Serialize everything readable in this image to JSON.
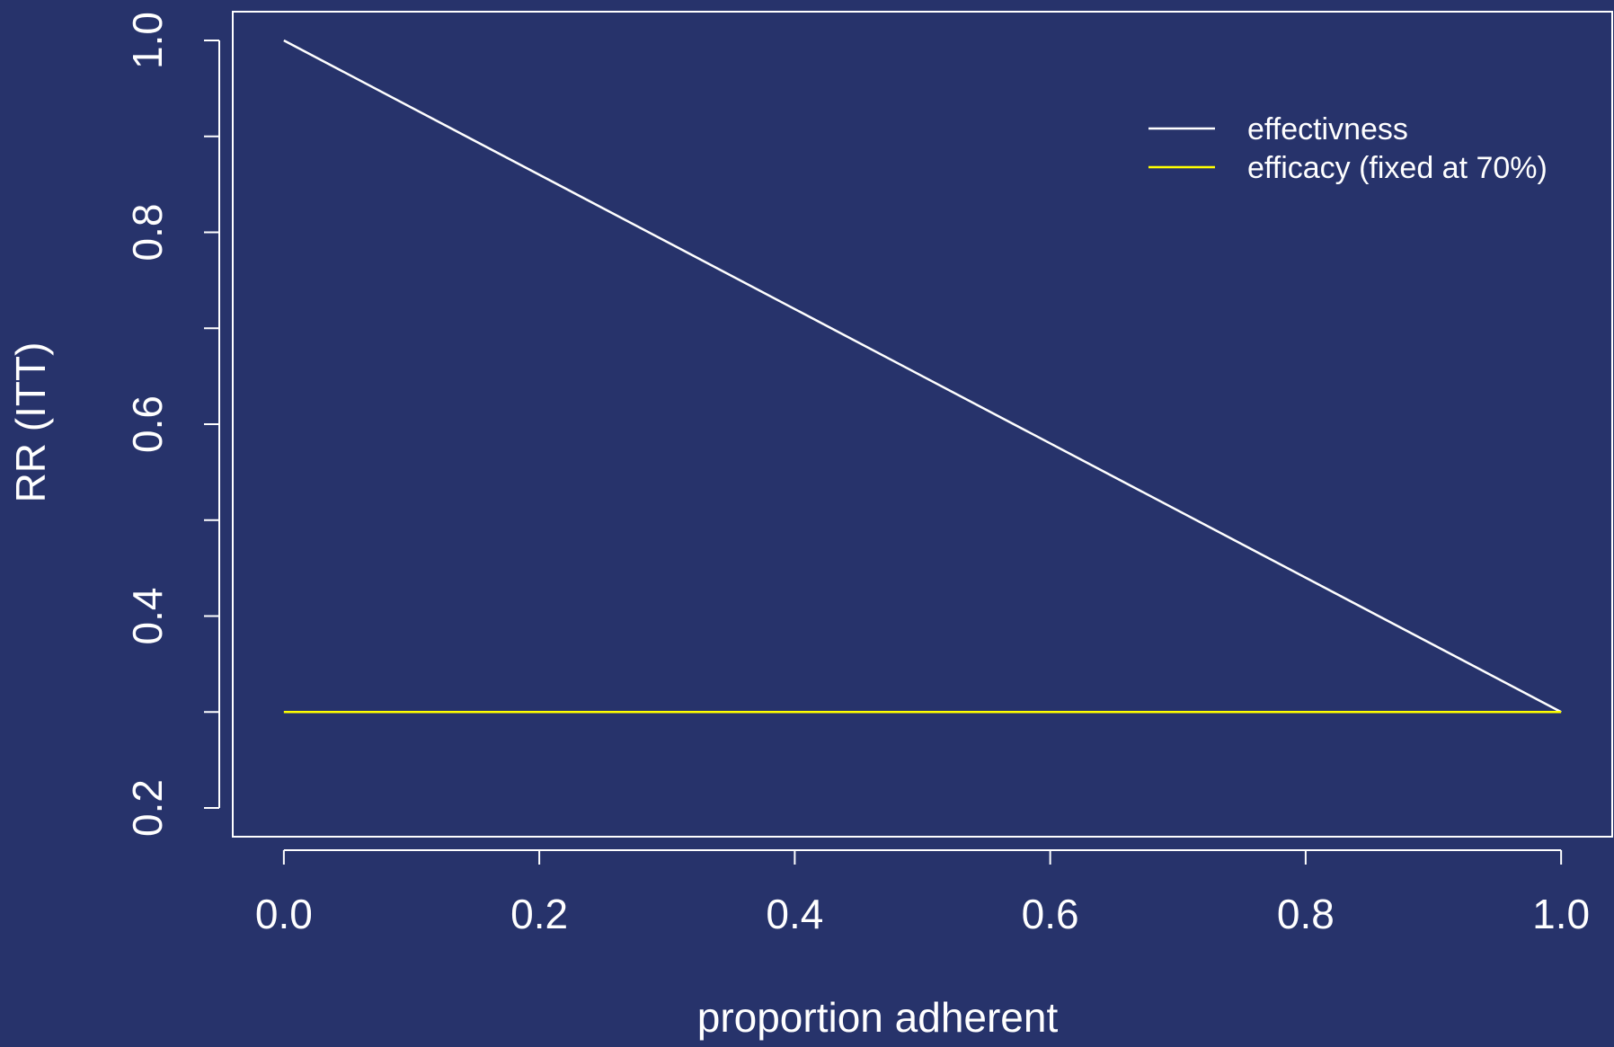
{
  "chart_data": {
    "type": "line",
    "title": "",
    "xlabel": "proportion adherent",
    "ylabel": "RR (ITT)",
    "xlim": [
      -0.04,
      1.04
    ],
    "ylim": [
      0.17,
      1.03
    ],
    "x_ticks": [
      0.0,
      0.2,
      0.4,
      0.6,
      0.8,
      1.0
    ],
    "x_tick_labels": [
      "0.0",
      "0.2",
      "0.4",
      "0.6",
      "0.8",
      "1.0"
    ],
    "y_ticks": [
      0.2,
      0.3,
      0.4,
      0.5,
      0.6,
      0.7,
      0.8,
      0.9,
      1.0
    ],
    "y_tick_labels": [
      "0.2",
      "",
      "0.4",
      "",
      "0.6",
      "",
      "0.8",
      "",
      "1.0"
    ],
    "grid": false,
    "legend_position": "top-right",
    "series": [
      {
        "name": "effectivness",
        "color": "#ffffff",
        "x": [
          0.0,
          1.0
        ],
        "y": [
          1.0,
          0.3
        ]
      },
      {
        "name": "efficacy (fixed at 70%)",
        "color": "#ffff00",
        "x": [
          0.0,
          1.0
        ],
        "y": [
          0.3,
          0.3
        ]
      }
    ]
  },
  "colors": {
    "background": "#27336b",
    "axis": "#ffffff"
  }
}
